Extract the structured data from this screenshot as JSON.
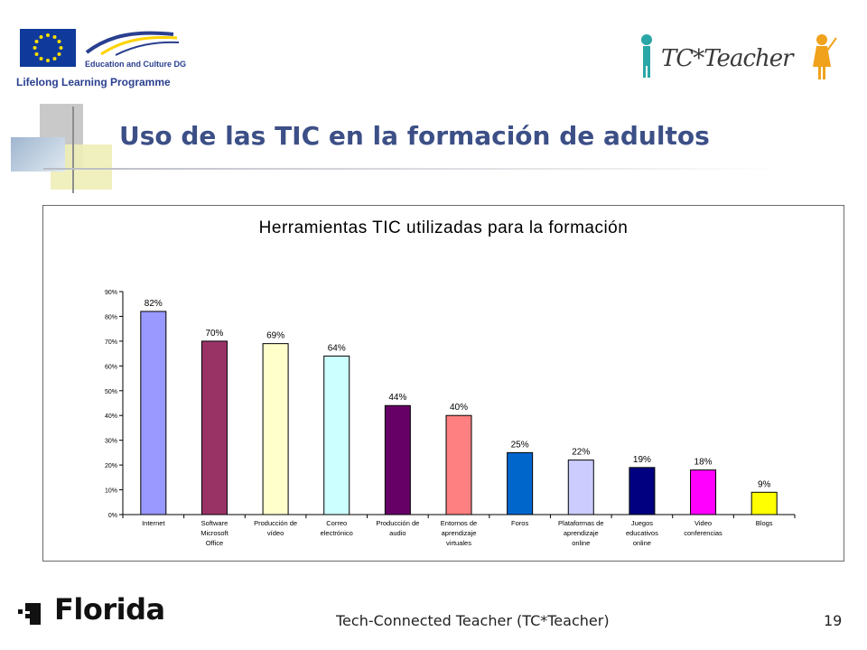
{
  "header": {
    "eu_logo": {
      "dg_text": "Education and Culture DG",
      "programme_text": "Lifelong Learning Programme"
    },
    "tc_logo": {
      "text": "TC*Teacher"
    }
  },
  "slide": {
    "title": "Uso de las TIC en la formación de adultos"
  },
  "chart_data": {
    "type": "bar",
    "title": "Herramientas TIC utilizadas para la formación",
    "xlabel": "",
    "ylabel": "",
    "ylim": [
      0,
      90
    ],
    "yticks": [
      "0%",
      "10%",
      "20%",
      "30%",
      "40%",
      "50%",
      "60%",
      "70%",
      "80%",
      "90%"
    ],
    "categories": [
      [
        "Internet"
      ],
      [
        "Software",
        "Microsoft",
        "Office"
      ],
      [
        "Producción de",
        "vídeo"
      ],
      [
        "Correo",
        "electrónico"
      ],
      [
        "Producción de",
        "audio"
      ],
      [
        "Entornos de",
        "aprendizaje",
        "virtuales"
      ],
      [
        "Foros"
      ],
      [
        "Plataformas de",
        "aprendizaje",
        "online"
      ],
      [
        "Juegos",
        "educativos",
        "online"
      ],
      [
        "Video",
        "conferencias"
      ],
      [
        "Blogs"
      ]
    ],
    "values": [
      82,
      70,
      69,
      64,
      44,
      40,
      25,
      22,
      19,
      18,
      9
    ],
    "value_labels": [
      "82%",
      "70%",
      "69%",
      "64%",
      "44%",
      "40%",
      "25%",
      "22%",
      "19%",
      "18%",
      "9%"
    ],
    "colors": [
      "#9999ff",
      "#993366",
      "#ffffcc",
      "#ccffff",
      "#660066",
      "#ff8080",
      "#0066cc",
      "#ccccff",
      "#000080",
      "#ff00ff",
      "#ffff00"
    ],
    "grid": false,
    "legend": "none"
  },
  "footer": {
    "brand": "Florida",
    "text": "Tech-Connected Teacher (TC*Teacher)",
    "page_number": "19"
  }
}
